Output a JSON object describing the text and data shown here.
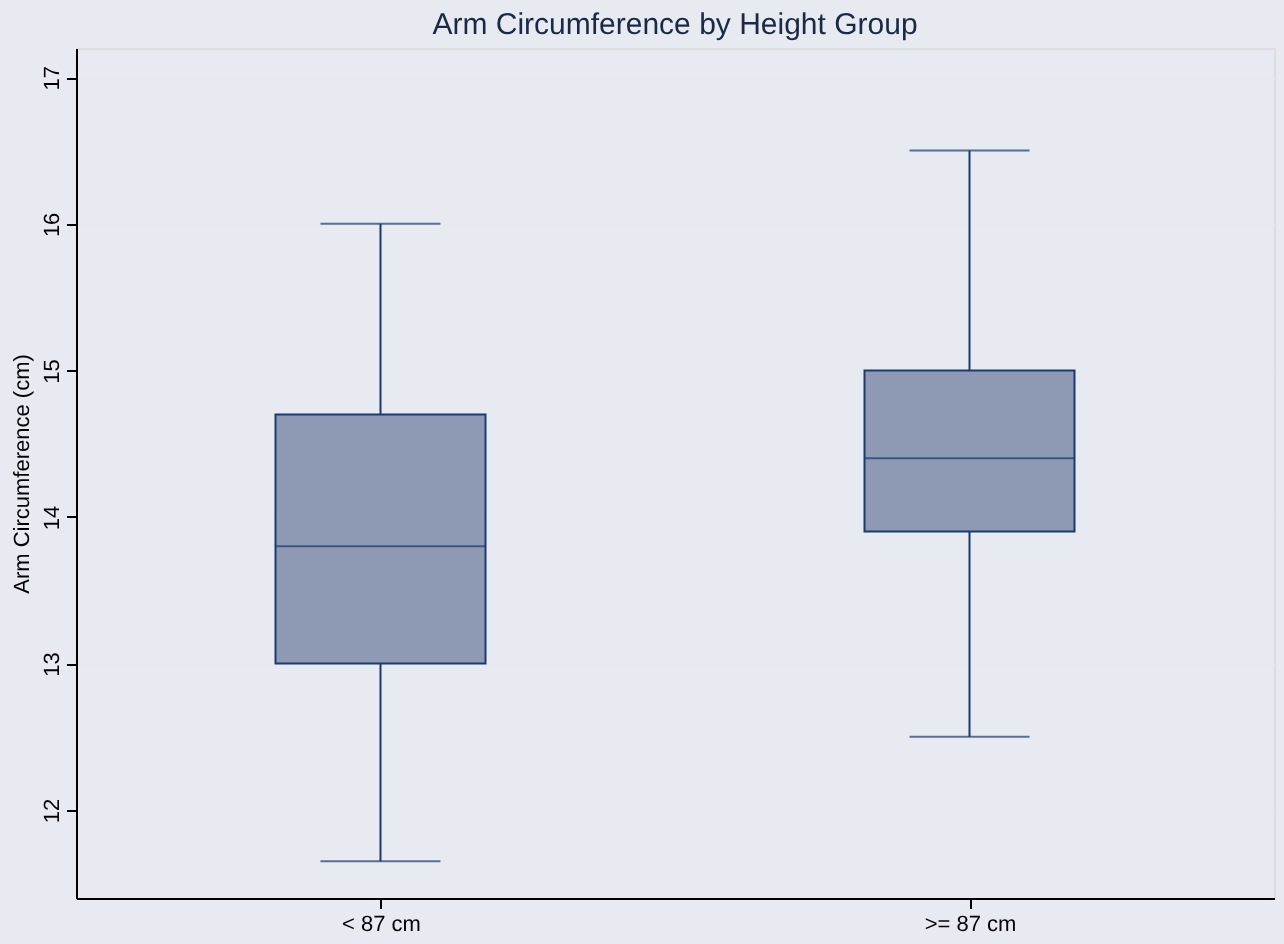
{
  "chart_data": {
    "type": "box",
    "title": "Arm Circumference by Height Group",
    "ylabel": "Arm Circumference (cm)",
    "categories": [
      "< 87 cm",
      ">= 87 cm"
    ],
    "boxes": [
      {
        "low": 11.65,
        "q1": 13.0,
        "median": 13.8,
        "q3": 14.7,
        "high": 16.0
      },
      {
        "low": 12.5,
        "q1": 13.9,
        "median": 14.4,
        "q3": 15.0,
        "high": 16.5
      }
    ],
    "color": "#8e9ab4",
    "ylim": [
      11.4,
      17.2
    ],
    "yticks": [
      12,
      13,
      14,
      15,
      16,
      17
    ],
    "grid": "y"
  }
}
